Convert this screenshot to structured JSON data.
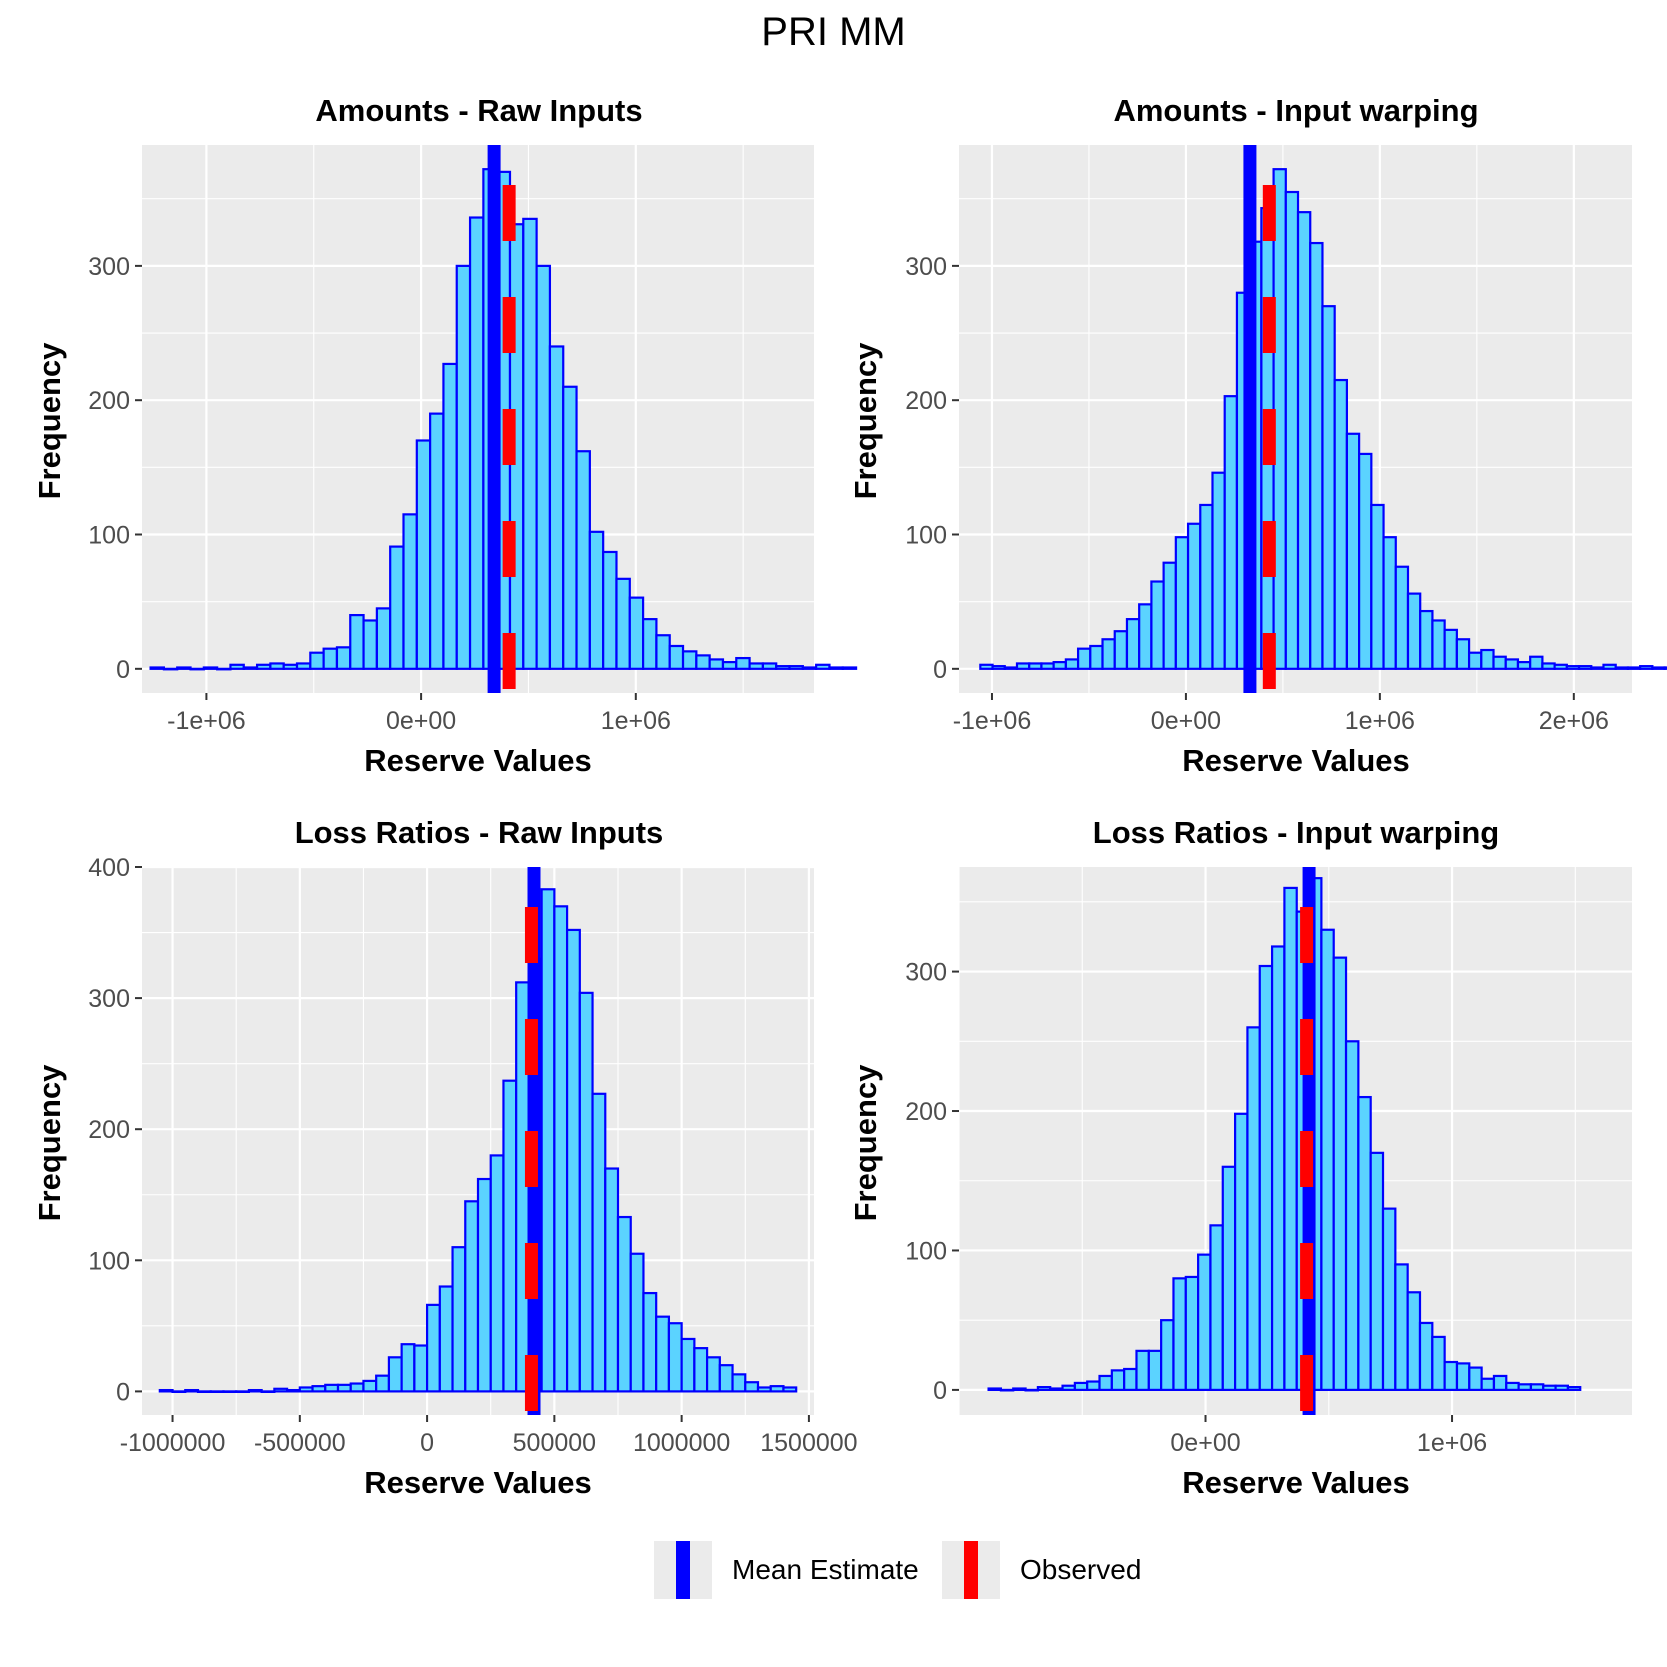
{
  "title": "PRI MM",
  "legend": {
    "items": [
      {
        "label": "Mean Estimate",
        "color": "#0000ff"
      },
      {
        "label": "Observed",
        "color": "#ff0000"
      }
    ],
    "position": "bottom"
  },
  "chart_data": [
    {
      "type": "histogram",
      "title": "Amounts - Raw Inputs",
      "xlabel": "Reserve Values",
      "ylabel": "Frequency",
      "xlim": [
        -1300000,
        1830000
      ],
      "ylim": [
        -18,
        390
      ],
      "xticks": [
        -1000000,
        0,
        1000000
      ],
      "xtick_labels": [
        "-1e+06",
        "0e+00",
        "1e+06"
      ],
      "yticks": [
        0,
        100,
        200,
        300
      ],
      "ytick_labels": [
        "0",
        "100",
        "200",
        "300"
      ],
      "bins": {
        "start": -1260000,
        "width": 62000,
        "counts": [
          1,
          0,
          1,
          0,
          1,
          0,
          3,
          1,
          3,
          4,
          3,
          4,
          12,
          15,
          16,
          40,
          36,
          45,
          91,
          115,
          170,
          190,
          227,
          300,
          336,
          372,
          370,
          331,
          335,
          300,
          240,
          210,
          162,
          102,
          87,
          67,
          53,
          37,
          25,
          17,
          13,
          10,
          7,
          5,
          8,
          4,
          4,
          2,
          2,
          1,
          3,
          1,
          1
        ]
      },
      "mean_estimate": 340000,
      "observed": 410000
    },
    {
      "type": "histogram",
      "title": "Amounts - Input warping",
      "xlabel": "Reserve Values",
      "ylabel": "Frequency",
      "xlim": [
        -1170000,
        2300000
      ],
      "ylim": [
        -18,
        390
      ],
      "xticks": [
        -1000000,
        0,
        1000000,
        2000000
      ],
      "xtick_labels": [
        "-1e+06",
        "0e+00",
        "1e+06",
        "2e+06"
      ],
      "yticks": [
        0,
        100,
        200,
        300
      ],
      "ytick_labels": [
        "0",
        "100",
        "200",
        "300"
      ],
      "bins": {
        "start": -1060000,
        "width": 63000,
        "counts": [
          3,
          2,
          1,
          4,
          4,
          4,
          5,
          7,
          15,
          17,
          22,
          28,
          37,
          48,
          65,
          79,
          98,
          108,
          122,
          146,
          203,
          280,
          318,
          343,
          372,
          355,
          340,
          317,
          270,
          215,
          175,
          160,
          122,
          98,
          76,
          56,
          43,
          36,
          29,
          22,
          12,
          14,
          9,
          7,
          5,
          9,
          4,
          3,
          2,
          2,
          1,
          3,
          1,
          1,
          2,
          1,
          1,
          2
        ]
      },
      "mean_estimate": 330000,
      "observed": 430000
    },
    {
      "type": "histogram",
      "title": "Loss Ratios - Raw Inputs",
      "xlabel": "Reserve Values",
      "ylabel": "Frequency",
      "xlim": [
        -1120000,
        1520000
      ],
      "ylim": [
        -18,
        400
      ],
      "xticks": [
        -1000000,
        -500000,
        0,
        500000,
        1000000,
        1500000
      ],
      "xtick_labels": [
        "-1000000",
        "-500000",
        "0",
        "500000",
        "1000000",
        "1500000"
      ],
      "yticks": [
        0,
        100,
        200,
        300,
        400
      ],
      "ytick_labels": [
        "0",
        "100",
        "200",
        "300",
        "400"
      ],
      "bins": {
        "start": -1050000,
        "width": 50000,
        "counts": [
          1,
          0,
          1,
          0,
          0,
          0,
          0,
          1,
          0,
          2,
          1,
          3,
          4,
          5,
          5,
          6,
          8,
          12,
          26,
          36,
          35,
          66,
          80,
          110,
          145,
          162,
          180,
          237,
          312,
          330,
          383,
          370,
          352,
          304,
          227,
          170,
          133,
          105,
          75,
          57,
          52,
          40,
          33,
          26,
          20,
          13,
          7,
          3,
          4,
          3
        ]
      },
      "mean_estimate": 420000,
      "observed": 410000
    },
    {
      "type": "histogram",
      "title": "Loss Ratios - Input warping",
      "xlabel": "Reserve Values",
      "ylabel": "Frequency",
      "xlim": [
        -1000000,
        1730000
      ],
      "ylim": [
        -18,
        375
      ],
      "xticks": [
        0,
        1000000
      ],
      "xtick_labels": [
        "0e+00",
        "1e+06"
      ],
      "yticks": [
        0,
        100,
        200,
        300
      ],
      "ytick_labels": [
        "0",
        "100",
        "200",
        "300"
      ],
      "bins": {
        "start": -880000,
        "width": 50000,
        "counts": [
          1,
          0,
          1,
          0,
          2,
          1,
          3,
          5,
          6,
          10,
          14,
          15,
          28,
          28,
          50,
          80,
          81,
          97,
          118,
          160,
          198,
          260,
          304,
          318,
          360,
          343,
          367,
          330,
          310,
          250,
          210,
          170,
          130,
          90,
          70,
          48,
          38,
          20,
          19,
          16,
          8,
          10,
          5,
          4,
          4,
          3,
          3,
          2
        ]
      },
      "mean_estimate": 420000,
      "observed": 410000
    }
  ]
}
